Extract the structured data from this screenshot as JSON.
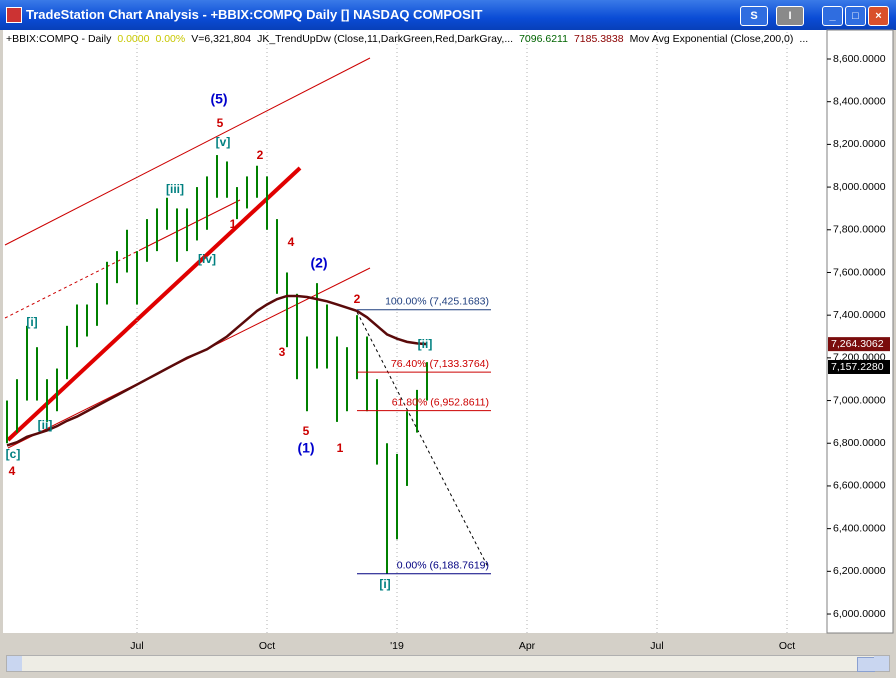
{
  "window": {
    "title": "TradeStation Chart Analysis - +BBIX:COMPQ Daily [] NASDAQ COMPOSIT",
    "buttons": [
      "S",
      "I"
    ]
  },
  "status_line": [
    {
      "text": "+BBIX:COMPQ - Daily",
      "color": "#000000"
    },
    {
      "text": "0.0000",
      "color": "#c8c800"
    },
    {
      "text": "0.00%",
      "color": "#c8c800"
    },
    {
      "text": "V=6,321,804",
      "color": "#000000"
    },
    {
      "text": "JK_TrendUpDw (Close,11,DarkGreen,Red,DarkGray,...",
      "color": "#000000"
    },
    {
      "text": "7096.6211",
      "color": "#006400"
    },
    {
      "text": "7185.3838",
      "color": "#8b0000"
    },
    {
      "text": "Mov Avg Exponential (Close,200,0)",
      "color": "#000000"
    },
    {
      "text": "...",
      "color": "#000000"
    }
  ],
  "chart_data": {
    "type": "ohlc",
    "categories": [
      null,
      null,
      null,
      null,
      null,
      null,
      null,
      null,
      null,
      null,
      null,
      null,
      null,
      "Jul",
      null,
      null,
      null,
      null,
      null,
      null,
      null,
      null,
      null,
      null,
      null,
      null,
      "Oct",
      null,
      null,
      null,
      null,
      null,
      null,
      null,
      null,
      null,
      null,
      null,
      null,
      "'19",
      null,
      null,
      null,
      null,
      null,
      null,
      null,
      null,
      null,
      null,
      null,
      null,
      "Apr",
      null,
      null,
      null,
      null,
      null,
      null,
      null,
      null,
      null,
      null,
      null,
      null,
      "Jul",
      null,
      null,
      null,
      null,
      null,
      null,
      null,
      null,
      null,
      null,
      null,
      null,
      "Oct",
      null,
      null,
      null
    ],
    "price": {
      "color": "#008000",
      "high": [
        7000,
        7100,
        7350,
        7250,
        7100,
        7150,
        7350,
        7450,
        7450,
        7550,
        7650,
        7700,
        7800,
        7700,
        7850,
        7900,
        7950,
        7900,
        7900,
        8000,
        8050,
        8150,
        8120,
        8000,
        8050,
        8100,
        8050,
        7850,
        7600,
        7500,
        7300,
        7550,
        7450,
        7300,
        7250,
        7400,
        7300,
        7100,
        6800,
        6750,
        6950,
        7050,
        7180,
        null,
        null,
        null,
        null,
        null,
        null,
        null,
        null,
        null,
        null,
        null,
        null,
        null,
        null,
        null,
        null,
        null,
        null,
        null,
        null,
        null,
        null,
        null,
        null,
        null,
        null,
        null,
        null,
        null,
        null,
        null,
        null,
        null,
        null,
        null,
        null,
        null,
        null,
        null
      ],
      "low": [
        6800,
        6850,
        7000,
        7000,
        6900,
        6950,
        7100,
        7250,
        7300,
        7350,
        7450,
        7550,
        7600,
        7450,
        7650,
        7700,
        7800,
        7650,
        7700,
        7750,
        7800,
        7950,
        7950,
        7850,
        7900,
        7950,
        7800,
        7500,
        7250,
        7100,
        6950,
        7150,
        7150,
        6900,
        6950,
        7100,
        6950,
        6700,
        6190,
        6350,
        6600,
        6850,
        7000,
        null,
        null,
        null,
        null,
        null,
        null,
        null,
        null,
        null,
        null,
        null,
        null,
        null,
        null,
        null,
        null,
        null,
        null,
        null,
        null,
        null,
        null,
        null,
        null,
        null,
        null,
        null,
        null,
        null,
        null,
        null,
        null,
        null,
        null,
        null,
        null,
        null,
        null,
        null
      ],
      "last_value": 7157.228,
      "last_label": "7,157.2280"
    },
    "moving_average": {
      "color": "#5a0a0a",
      "values": [
        6790,
        6805,
        6830,
        6845,
        6860,
        6880,
        6905,
        6925,
        6950,
        6975,
        7000,
        7025,
        7050,
        7075,
        7100,
        7125,
        7150,
        7175,
        7200,
        7220,
        7240,
        7270,
        7300,
        7340,
        7380,
        7420,
        7450,
        7475,
        7490,
        7490,
        7485,
        7475,
        7465,
        7450,
        7435,
        7420,
        7390,
        7350,
        7310,
        7290,
        7275,
        7268,
        7264.3062,
        null,
        null,
        null,
        null,
        null,
        null,
        null,
        null,
        null,
        null,
        null,
        null,
        null,
        null,
        null,
        null,
        null,
        null,
        null,
        null,
        null,
        null,
        null,
        null,
        null,
        null,
        null,
        null,
        null,
        null,
        null,
        null,
        null,
        null,
        null,
        null,
        null,
        null,
        null
      ],
      "last_label": "7,264.3062"
    },
    "ylim": [
      5920,
      8730
    ],
    "yticks": [
      {
        "value": 6000,
        "label": "6,000.0000"
      },
      {
        "value": 6200,
        "label": "6,200.0000"
      },
      {
        "value": 6400,
        "label": "6,400.0000"
      },
      {
        "value": 6600,
        "label": "6,600.0000"
      },
      {
        "value": 6800,
        "label": "6,800.0000"
      },
      {
        "value": 7000,
        "label": "7,000.0000"
      },
      {
        "value": 7200,
        "label": "7,200.0000"
      },
      {
        "value": 7400,
        "label": "7,400.0000"
      },
      {
        "value": 7600,
        "label": "7,600.0000"
      },
      {
        "value": 7800,
        "label": "7,800.0000"
      },
      {
        "value": 8000,
        "label": "8,000.0000"
      },
      {
        "value": 8200,
        "label": "8,200.0000"
      },
      {
        "value": 8400,
        "label": "8,400.0000"
      },
      {
        "value": 8600,
        "label": "8,600.0000"
      }
    ],
    "fib_levels": [
      {
        "value": 7425.1683,
        "label": "100.00% (7,425.1683)",
        "color": "#1f3f7f"
      },
      {
        "value": 7133.3764,
        "label": "76.40% (7,133.3764)",
        "color": "#cc0000"
      },
      {
        "value": 6952.8611,
        "label": "61.80% (6,952.8611)",
        "color": "#cc0000"
      },
      {
        "value": 6188.7619,
        "label": "0.00% (6,188.7619)",
        "color": "#000080"
      }
    ],
    "annotations": [
      {
        "text": "(5)",
        "color": "#0000cc"
      },
      {
        "text": "5",
        "color": "#cc0000"
      },
      {
        "text": "[v]",
        "color": "#008080"
      },
      {
        "text": "2",
        "color": "#cc0000"
      },
      {
        "text": "[iii]",
        "color": "#008080"
      },
      {
        "text": "1",
        "color": "#cc0000"
      },
      {
        "text": "[iv]",
        "color": "#008080"
      },
      {
        "text": "4",
        "color": "#cc0000"
      },
      {
        "text": "(2)",
        "color": "#0000cc"
      },
      {
        "text": "3",
        "color": "#cc0000"
      },
      {
        "text": "5",
        "color": "#cc0000"
      },
      {
        "text": "(1)",
        "color": "#0000cc"
      },
      {
        "text": "1",
        "color": "#cc0000"
      },
      {
        "text": "2",
        "color": "#cc0000"
      },
      {
        "text": "[ii]",
        "color": "#008080"
      },
      {
        "text": "[i]",
        "color": "#008080"
      },
      {
        "text": "[ii]",
        "color": "#008080"
      },
      {
        "text": "[c]",
        "color": "#008080"
      },
      {
        "text": "4",
        "color": "#cc0000"
      },
      {
        "text": "[i]",
        "color": "#008080"
      }
    ]
  }
}
